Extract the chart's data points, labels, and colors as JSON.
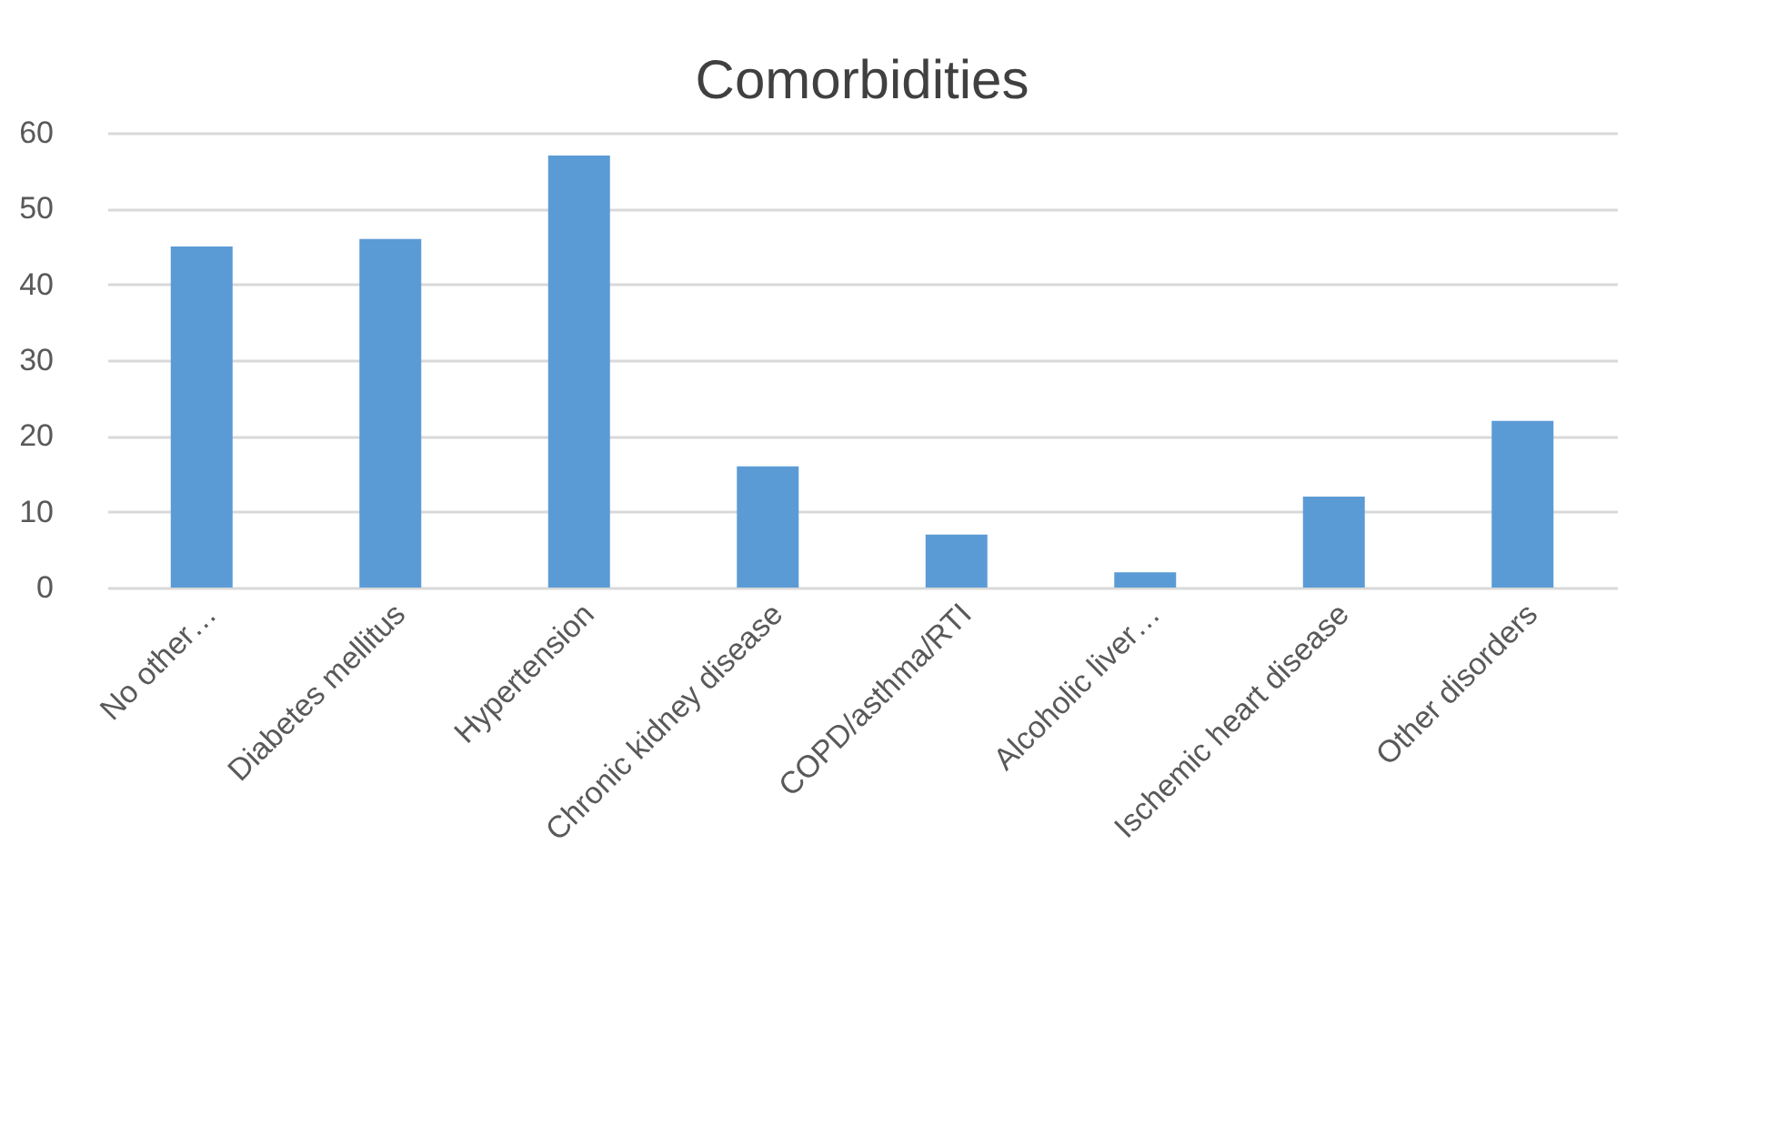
{
  "chart_data": {
    "type": "bar",
    "title": "Comorbidities",
    "categories": [
      "No other…",
      "Diabetes mellitus",
      "Hypertension",
      "Chronic kidney disease",
      "COPD/asthma/RTI",
      "Alcoholic liver…",
      "Ischemic heart disease",
      "Other disorders"
    ],
    "values": [
      45,
      46,
      57,
      16,
      7,
      2,
      12,
      22
    ],
    "color": "#5b9bd5",
    "ylim": [
      0,
      60
    ],
    "yticks": [
      0,
      10,
      20,
      30,
      40,
      50,
      60
    ],
    "grid": "y"
  }
}
